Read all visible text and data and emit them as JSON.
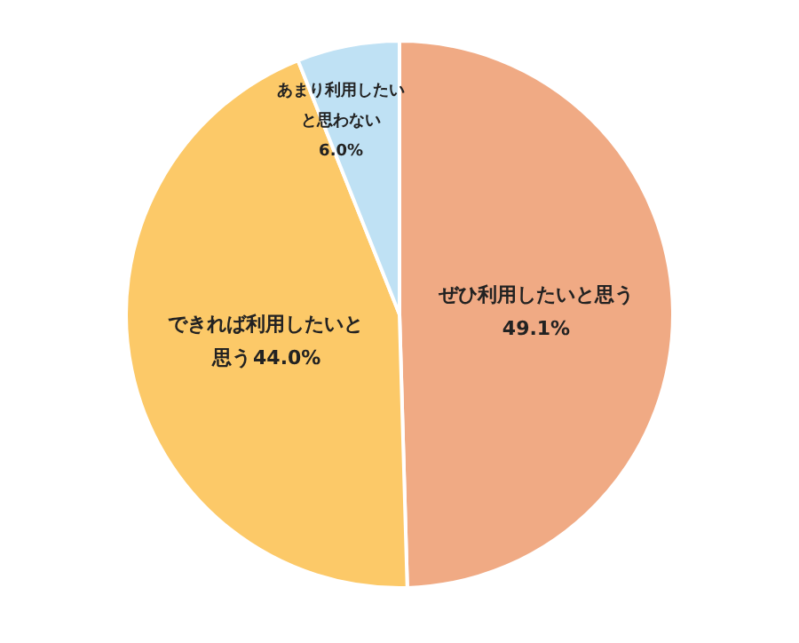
{
  "chart_data": {
    "type": "pie",
    "categories": [
      "ぜひ利用したいと思う",
      "できれば利用したいと思う",
      "あまり利用したいと思わない"
    ],
    "values": [
      49.1,
      44.0,
      6.0
    ],
    "colors": [
      "#f0aa84",
      "#fcc968",
      "#bfe1f4"
    ],
    "value_labels": [
      "49.1%",
      "44.0%",
      "6.0%"
    ],
    "legend": false
  }
}
